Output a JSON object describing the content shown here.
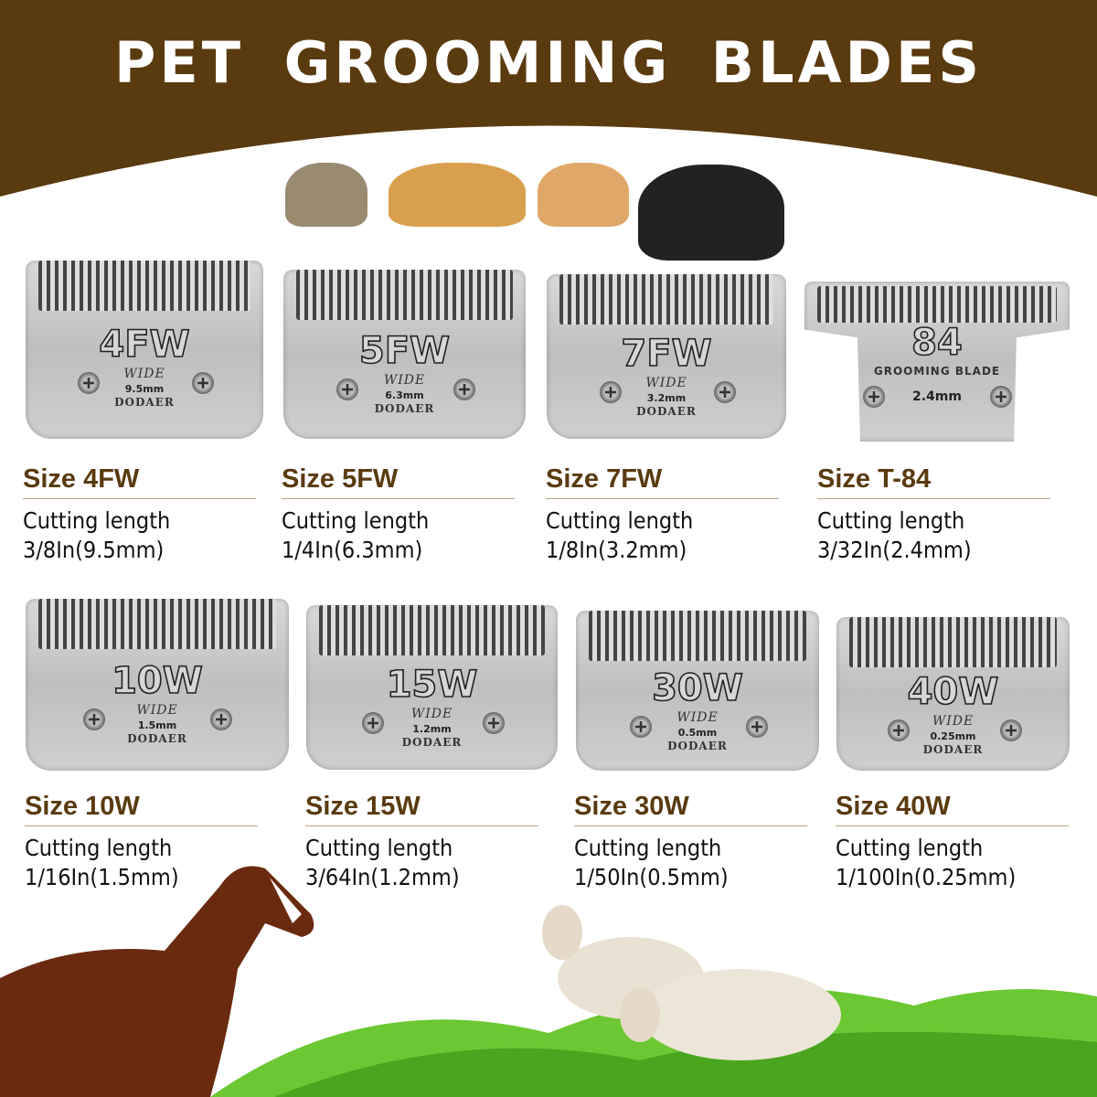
{
  "title": "PET GROOMING BLADES",
  "colors": {
    "header_brown": "#5a3a0f",
    "size_text": "#5a3a10",
    "divider": "#b7a27e",
    "grass": "#5dbb2a"
  },
  "pets": [
    "cat",
    "golden-retriever",
    "cat",
    "black-white-dog"
  ],
  "spec_label": "Cutting length",
  "blades": [
    {
      "stamp": "4FW",
      "wide": "WIDE",
      "mm": "9.5mm",
      "brand": "DODAER",
      "size": "Size 4FW",
      "length": "3/8In(9.5mm)"
    },
    {
      "stamp": "5FW",
      "wide": "WIDE",
      "mm": "6.3mm",
      "brand": "DODAER",
      "size": "Size 5FW",
      "length": "1/4In(6.3mm)"
    },
    {
      "stamp": "7FW",
      "wide": "WIDE",
      "mm": "3.2mm",
      "brand": "DODAER",
      "size": "Size 7FW",
      "length": "1/8In(3.2mm)"
    },
    {
      "stamp": "84",
      "wide": "GROOMING BLADE",
      "mm": "2.4mm",
      "brand": "",
      "size": "Size T-84",
      "length": "3/32In(2.4mm)"
    },
    {
      "stamp": "10W",
      "wide": "WIDE",
      "mm": "1.5mm",
      "brand": "DODAER",
      "size": "Size 10W",
      "length": "1/16In(1.5mm)"
    },
    {
      "stamp": "15W",
      "wide": "WIDE",
      "mm": "1.2mm",
      "brand": "DODAER",
      "size": "Size 15W",
      "length": "3/64In(1.2mm)"
    },
    {
      "stamp": "30W",
      "wide": "WIDE",
      "mm": "0.5mm",
      "brand": "DODAER",
      "size": "Size 30W",
      "length": "1/50In(0.5mm)"
    },
    {
      "stamp": "40W",
      "wide": "WIDE",
      "mm": "0.25mm",
      "brand": "DODAER",
      "size": "Size 40W",
      "length": "1/100In(0.25mm)"
    }
  ],
  "animals_bottom": [
    "horse",
    "sheep",
    "sheep"
  ]
}
